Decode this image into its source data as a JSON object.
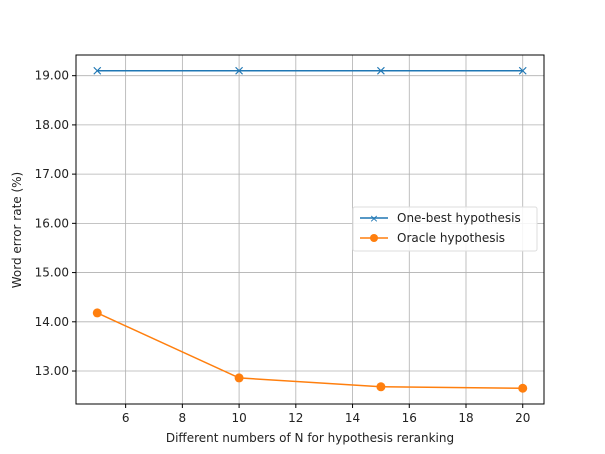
{
  "chart_data": {
    "type": "line",
    "title": "",
    "xlabel": "Different numbers of N for hypothesis reranking",
    "ylabel": "Word error rate (%)",
    "xlim": [
      4.25,
      20.75
    ],
    "ylim": [
      12.33,
      19.42
    ],
    "xticks": [
      6,
      8,
      10,
      12,
      14,
      16,
      18,
      20
    ],
    "yticks": [
      13,
      14,
      15,
      16,
      17,
      18,
      19
    ],
    "ytick_labels": [
      "13.00",
      "14.00",
      "15.00",
      "16.00",
      "17.00",
      "18.00",
      "19.00"
    ],
    "grid": true,
    "legend": "center-right",
    "x": [
      5,
      10,
      15,
      20
    ],
    "series": [
      {
        "name": "One-best hypothesis",
        "values": [
          19.1,
          19.1,
          19.1,
          19.1
        ],
        "color": "#1f77b4",
        "marker": "x"
      },
      {
        "name": "Oracle hypothesis",
        "values": [
          14.18,
          12.86,
          12.68,
          12.65
        ],
        "color": "#ff7f0e",
        "marker": "o"
      }
    ]
  }
}
